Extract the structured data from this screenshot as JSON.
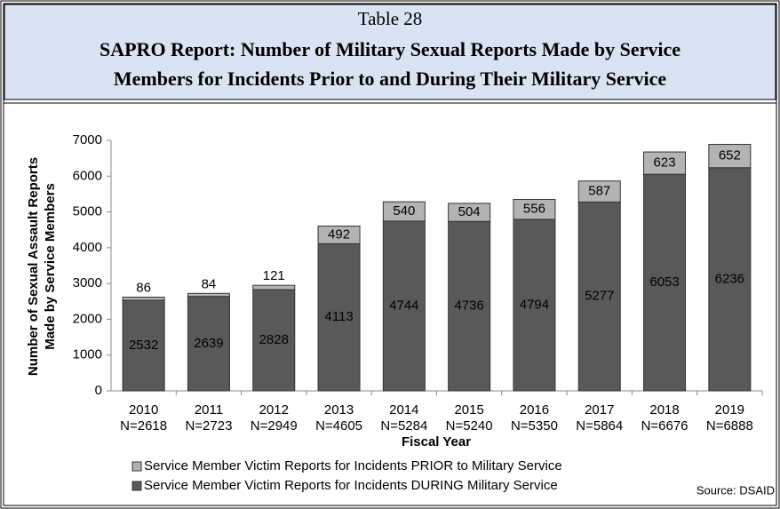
{
  "chart_data": {
    "type": "stacked_bar",
    "table_label": "Table 28",
    "title": [
      "SAPRO Report: Number of Military Sexual Reports Made by Service",
      "Members for Incidents Prior to and During Their Military Service"
    ],
    "ylabel": [
      "Number of Sexual Assault Reports",
      "Made by Service Members"
    ],
    "xlabel": "Fiscal Year",
    "categories": [
      "2010",
      "2011",
      "2012",
      "2013",
      "2014",
      "2015",
      "2016",
      "2017",
      "2018",
      "2019"
    ],
    "category_totals": [
      "N=2618",
      "N=2723",
      "N=2949",
      "N=4605",
      "N=5284",
      "N=5240",
      "N=5350",
      "N=5864",
      "N=6676",
      "N=6888"
    ],
    "series": [
      {
        "name": "Service Member Victim Reports for Incidents DURING Military Service",
        "color": "#595959",
        "values": [
          2532,
          2639,
          2828,
          4113,
          4744,
          4736,
          4794,
          5277,
          6053,
          6236
        ]
      },
      {
        "name": "Service Member Victim Reports for Incidents PRIOR to Military Service",
        "color": "#b3b3b3",
        "values": [
          86,
          84,
          121,
          492,
          540,
          504,
          556,
          587,
          623,
          652
        ]
      }
    ],
    "ylim": [
      0,
      7000
    ],
    "yticks": [
      0,
      1000,
      2000,
      3000,
      4000,
      5000,
      6000,
      7000
    ],
    "source": "Source: DSAID"
  }
}
